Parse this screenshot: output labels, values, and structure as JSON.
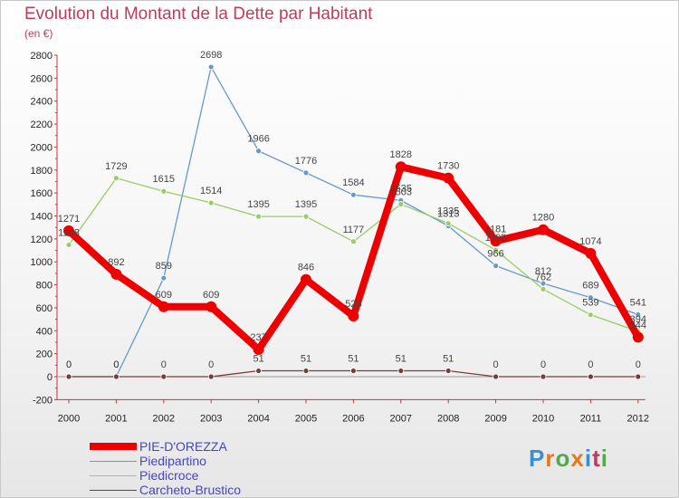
{
  "title": "Evolution du Montant de la Dette par Habitant",
  "unit": "(en €)",
  "logo": "Proxiti",
  "chart_data": {
    "type": "line",
    "title": "Evolution du Montant de la Dette par Habitant",
    "ylabel": "(en €)",
    "xlabel": "",
    "x": [
      "2000",
      "2001",
      "2002",
      "2003",
      "2004",
      "2005",
      "2006",
      "2007",
      "2008",
      "2009",
      "2010",
      "2011",
      "2012"
    ],
    "ylim": [
      -200,
      2800
    ],
    "yticks": [
      -200,
      0,
      200,
      400,
      600,
      800,
      1000,
      1200,
      1400,
      1600,
      1800,
      2000,
      2200,
      2400,
      2600,
      2800
    ],
    "grid": false,
    "legend": "bottom-left",
    "series": [
      {
        "name": "PIE-D'OREZZA",
        "color": "#ee0000",
        "width": 8,
        "values": [
          1271,
          892,
          609,
          609,
          237,
          846,
          528,
          1828,
          1730,
          1181,
          1280,
          1074,
          344
        ]
      },
      {
        "name": "Piedipartino",
        "color": "#6699cc",
        "width": 1.3,
        "values": [
          0,
          0,
          859,
          2698,
          1966,
          1776,
          1584,
          1535,
          1313,
          966,
          812,
          689,
          541
        ]
      },
      {
        "name": "Piedicroce",
        "color": "#99cc66",
        "width": 1.3,
        "values": [
          1148,
          1729,
          1615,
          1514,
          1395,
          1395,
          1177,
          1503,
          1335,
          1103,
          762,
          539,
          394
        ]
      },
      {
        "name": "Carcheto-Brustico",
        "color": "#7a3b3b",
        "width": 1.3,
        "values": [
          0,
          0,
          0,
          0,
          51,
          51,
          51,
          51,
          51,
          0,
          0,
          0,
          0
        ]
      }
    ]
  }
}
